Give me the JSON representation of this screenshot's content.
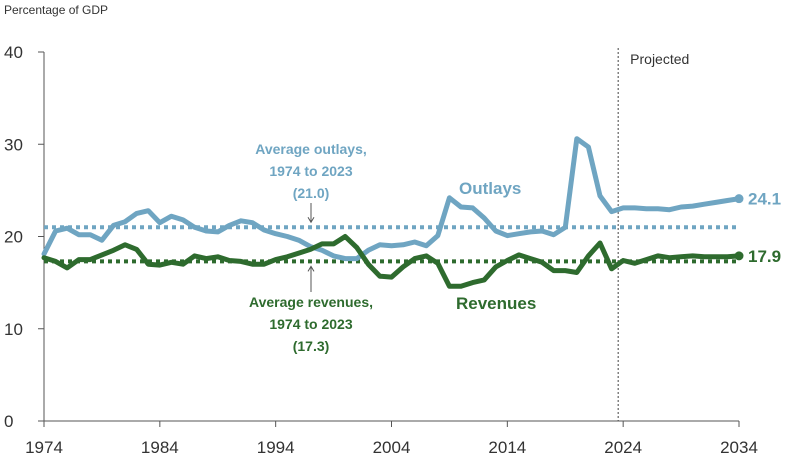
{
  "chart_data": {
    "type": "line",
    "ylabel": "Percentage of GDP",
    "xlim": [
      1974,
      2034
    ],
    "ylim": [
      0,
      40
    ],
    "x_ticks": [
      1974,
      1984,
      1994,
      2004,
      2014,
      2024,
      2034
    ],
    "y_ticks": [
      0,
      10,
      20,
      30,
      40
    ],
    "grid": false,
    "projected_label": "Projected",
    "projected_start": 2024,
    "colors": {
      "outlays": "#6fa5c2",
      "revenues": "#2e6b2e",
      "axis": "#555555"
    },
    "x": [
      1974,
      1975,
      1976,
      1977,
      1978,
      1979,
      1980,
      1981,
      1982,
      1983,
      1984,
      1985,
      1986,
      1987,
      1988,
      1989,
      1990,
      1991,
      1992,
      1993,
      1994,
      1995,
      1996,
      1997,
      1998,
      1999,
      2000,
      2001,
      2002,
      2003,
      2004,
      2005,
      2006,
      2007,
      2008,
      2009,
      2010,
      2011,
      2012,
      2013,
      2014,
      2015,
      2016,
      2017,
      2018,
      2019,
      2020,
      2021,
      2022,
      2023,
      2024,
      2025,
      2026,
      2027,
      2028,
      2029,
      2030,
      2031,
      2032,
      2033,
      2034
    ],
    "series": [
      {
        "name": "Outlays",
        "values": [
          18.1,
          20.6,
          20.9,
          20.2,
          20.2,
          19.6,
          21.2,
          21.6,
          22.5,
          22.8,
          21.5,
          22.2,
          21.8,
          21.0,
          20.6,
          20.5,
          21.2,
          21.7,
          21.5,
          20.7,
          20.3,
          20.0,
          19.6,
          18.9,
          18.5,
          17.9,
          17.6,
          17.6,
          18.5,
          19.1,
          19.0,
          19.1,
          19.4,
          19.0,
          20.1,
          24.2,
          23.2,
          23.1,
          22.0,
          20.6,
          20.1,
          20.3,
          20.5,
          20.6,
          20.2,
          21.0,
          30.6,
          29.7,
          24.4,
          22.7,
          23.1,
          23.1,
          23.0,
          23.0,
          22.9,
          23.2,
          23.3,
          23.5,
          23.7,
          23.9,
          24.1
        ],
        "end_label": "24.1",
        "average": 21.0
      },
      {
        "name": "Revenues",
        "values": [
          17.7,
          17.3,
          16.6,
          17.5,
          17.5,
          18.0,
          18.5,
          19.1,
          18.6,
          17.0,
          16.9,
          17.2,
          17.0,
          17.9,
          17.6,
          17.8,
          17.4,
          17.3,
          17.0,
          17.0,
          17.5,
          17.8,
          18.2,
          18.6,
          19.2,
          19.2,
          20.0,
          18.8,
          17.0,
          15.7,
          15.6,
          16.7,
          17.6,
          17.9,
          17.1,
          14.6,
          14.6,
          15.0,
          15.3,
          16.7,
          17.4,
          18.0,
          17.6,
          17.2,
          16.3,
          16.3,
          16.1,
          17.9,
          19.3,
          16.5,
          17.4,
          17.1,
          17.5,
          17.9,
          17.7,
          17.8,
          17.9,
          17.8,
          17.8,
          17.8,
          17.9
        ],
        "end_label": "17.9",
        "average": 17.3
      }
    ],
    "annotations": {
      "outlays_avg": [
        "Average outlays,",
        "1974 to 2023",
        "(21.0)"
      ],
      "revenues_avg": [
        "Average revenues,",
        "1974 to 2023",
        "(17.3)"
      ]
    }
  }
}
